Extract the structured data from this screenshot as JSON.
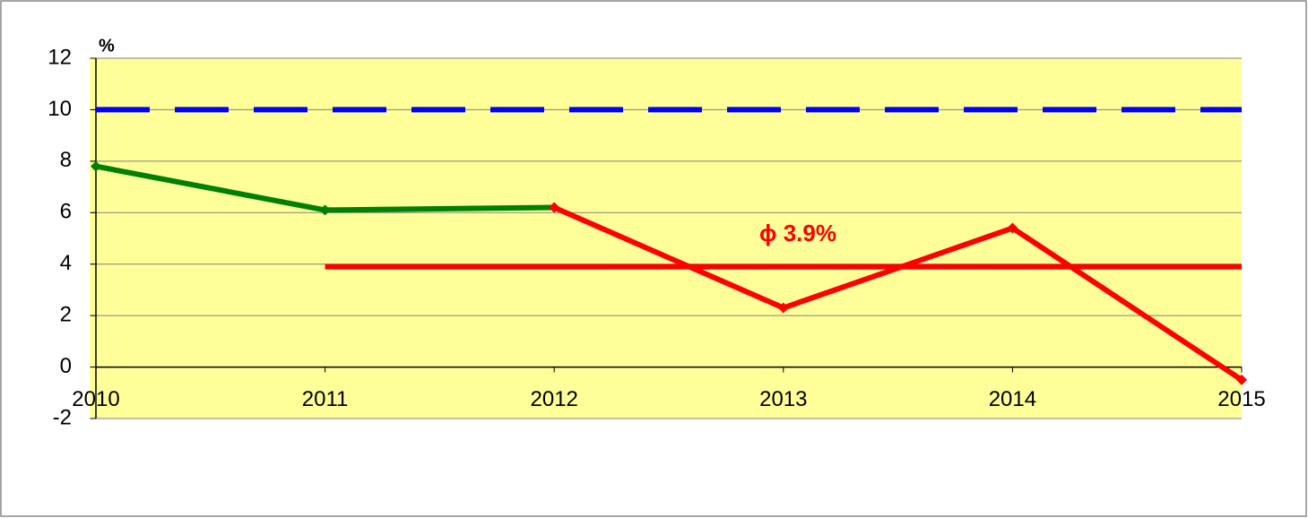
{
  "chart_data": {
    "type": "line",
    "y_label": "%",
    "annotation": "ϕ 3.9%",
    "categories": [
      "2010",
      "2011",
      "2012",
      "2013",
      "2014",
      "2015"
    ],
    "series": [
      {
        "color": "#0000ff",
        "line_style": "dashed",
        "marker": "none",
        "values": [
          10,
          10,
          10,
          10,
          10,
          10
        ]
      },
      {
        "color": "#ff0000",
        "line_style": "solid",
        "marker": "none",
        "values": [
          null,
          3.9,
          3.9,
          3.9,
          3.9,
          3.9
        ]
      },
      {
        "color": "#008000",
        "line_style": "solid",
        "marker": "diamond",
        "values": [
          7.8,
          6.1,
          6.2,
          null,
          null,
          null
        ]
      },
      {
        "color": "#ff0000",
        "line_style": "solid",
        "marker": "diamond",
        "values": [
          null,
          null,
          6.2,
          2.3,
          5.4,
          -0.5
        ]
      }
    ],
    "ylim": [
      -2,
      12
    ],
    "yticks": [
      -2,
      0,
      2,
      4,
      6,
      8,
      10,
      12
    ],
    "grid": true,
    "plot_background": "#ffff99"
  }
}
